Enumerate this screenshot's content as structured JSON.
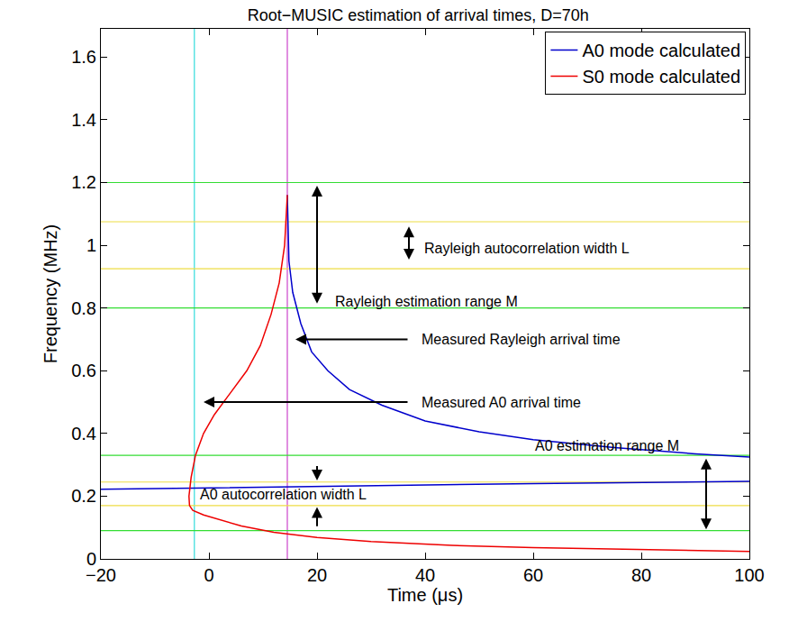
{
  "chart_data": {
    "type": "line",
    "title": "Root−MUSIC estimation of arrival times, D=70h",
    "x_label": "Time (μs)",
    "y_label": "Frequency (MHz)",
    "xlim": [
      -20,
      100
    ],
    "ylim": [
      0,
      1.69
    ],
    "xticks": [
      {
        "value": -20,
        "label": "−20"
      },
      0,
      20,
      40,
      60,
      80,
      100
    ],
    "yticks": [
      0,
      0.2,
      0.4,
      0.6,
      0.8,
      1,
      1.2,
      1.4,
      1.6
    ],
    "grid": false,
    "legend": "upper right",
    "series": [
      {
        "name": "A0 mode calculated",
        "color": "#0000cc",
        "x": [
          14.5,
          14.8,
          15.5,
          17,
          19,
          22,
          26,
          32,
          40,
          50,
          60,
          75,
          90,
          100,
          null,
          -20,
          20,
          60,
          100
        ],
        "y": [
          1.16,
          0.95,
          0.85,
          0.75,
          0.66,
          0.6,
          0.54,
          0.49,
          0.44,
          0.405,
          0.38,
          0.355,
          0.335,
          0.325,
          null,
          0.222,
          0.232,
          0.24,
          0.247
        ]
      },
      {
        "name": "S0 mode calculated",
        "color": "#ee0000",
        "x": [
          14.5,
          14,
          13,
          11.5,
          9.5,
          7,
          4,
          1,
          -1,
          -2.5,
          -3.3,
          -3.7,
          -3.6,
          -3,
          -1,
          2,
          6,
          12,
          20,
          30,
          45,
          60,
          80,
          100
        ],
        "y": [
          1.16,
          1.0,
          0.88,
          0.78,
          0.68,
          0.6,
          0.53,
          0.46,
          0.4,
          0.33,
          0.26,
          0.2,
          0.17,
          0.155,
          0.14,
          0.125,
          0.105,
          0.085,
          0.068,
          0.055,
          0.043,
          0.036,
          0.029,
          0.024
        ]
      }
    ],
    "vlines": [
      {
        "x": -2.7,
        "color": "#33dddd"
      },
      {
        "x": 14.5,
        "color": "#cc44cc"
      }
    ],
    "hlines": [
      {
        "y": 0.09,
        "color": "#33dd33"
      },
      {
        "y": 0.33,
        "color": "#33dd33"
      },
      {
        "y": 0.8,
        "color": "#33dd33"
      },
      {
        "y": 1.2,
        "color": "#33dd33"
      },
      {
        "y": 0.17,
        "color": "#eedd44"
      },
      {
        "y": 0.245,
        "color": "#eedd44"
      },
      {
        "y": 0.925,
        "color": "#eedd44"
      },
      {
        "y": 1.075,
        "color": "#eedd44"
      }
    ],
    "annotations": [
      {
        "text": "Rayleigh autocorrelation width L",
        "x": 39.5,
        "y": 0.99
      },
      {
        "text": "Rayleigh estimation range M",
        "x": 23,
        "y": 0.82
      },
      {
        "text": "Measured Rayleigh arrival time",
        "x": 39,
        "y": 0.7
      },
      {
        "text": "Measured A0 arrival time",
        "x": 39,
        "y": 0.5
      },
      {
        "text": "A0 estimation range M",
        "x": 60,
        "y": 0.36
      },
      {
        "text": "A0 autocorrelation width L",
        "x": -2,
        "y": 0.205
      }
    ],
    "arrows": [
      {
        "from": [
          37,
          0.95
        ],
        "to": [
          37,
          1.06
        ],
        "style": "double"
      },
      {
        "from": [
          20,
          0.81
        ],
        "to": [
          20,
          1.19
        ],
        "style": "double"
      },
      {
        "from": [
          37,
          0.7
        ],
        "to": [
          16,
          0.7
        ],
        "style": "single"
      },
      {
        "from": [
          37,
          0.5
        ],
        "to": [
          -1,
          0.5
        ],
        "style": "single"
      },
      {
        "from": [
          92,
          0.09
        ],
        "to": [
          92,
          0.32
        ],
        "style": "double"
      },
      {
        "from": [
          20,
          0.3
        ],
        "to": [
          20,
          0.25
        ],
        "style": "single"
      },
      {
        "from": [
          20,
          0.1
        ],
        "to": [
          20,
          0.165
        ],
        "style": "single"
      }
    ]
  }
}
